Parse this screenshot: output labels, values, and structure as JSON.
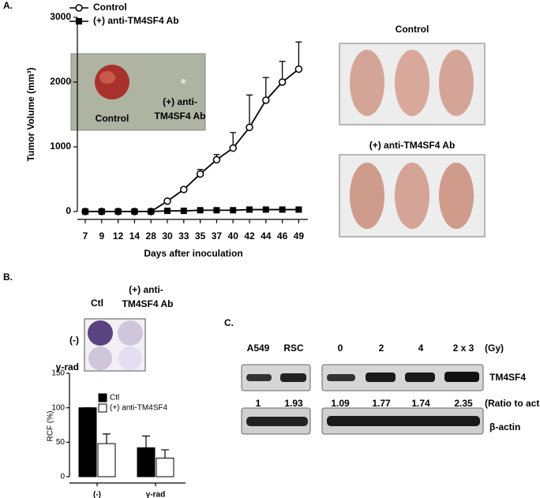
{
  "panels": {
    "a": "A.",
    "b": "B.",
    "c": "C."
  },
  "chart_data": [
    {
      "type": "line",
      "x_label": "Days after inoculation",
      "y_label": "Tumor Volume (mm³)",
      "categories": [
        7,
        9,
        12,
        14,
        28,
        30,
        33,
        35,
        37,
        40,
        42,
        44,
        46,
        49
      ],
      "series": [
        {
          "name": "Control",
          "color": "#000000",
          "marker": "open-circle",
          "values": [
            0,
            0,
            0,
            0,
            0,
            160,
            340,
            580,
            800,
            980,
            1300,
            1720,
            2000,
            2200
          ],
          "errors": [
            0,
            0,
            0,
            0,
            0,
            0,
            30,
            70,
            80,
            240,
            500,
            350,
            320,
            420
          ]
        },
        {
          "name": "(+) anti-TM4SF4 Ab",
          "color": "#000000",
          "marker": "filled-square",
          "values": [
            0,
            0,
            0,
            0,
            0,
            10,
            10,
            20,
            20,
            20,
            30,
            30,
            30,
            30
          ]
        }
      ],
      "ylim": [
        0,
        3000
      ],
      "yticks": [
        0,
        1000,
        2000,
        3000
      ]
    },
    {
      "type": "bar",
      "y_label": "RCF (%)",
      "categories": [
        "(-)",
        "γ-rad"
      ],
      "series": [
        {
          "name": "Ctl",
          "color": "#000000",
          "values": [
            100,
            42
          ],
          "errors": [
            0,
            17
          ]
        },
        {
          "name": "(+) anti-TM4SF4",
          "color": "#ffffff",
          "values": [
            48,
            27
          ],
          "errors": [
            14,
            12
          ]
        }
      ],
      "ylim": [
        0,
        150
      ],
      "yticks": [
        0,
        50,
        100,
        150
      ]
    }
  ],
  "tumor_photo": {
    "control": "Control",
    "treated_line1": "(+) anti-",
    "treated_line2": "TM4SF4 Ab"
  },
  "mice_photos": {
    "top": "Control",
    "bottom": "(+) anti-TM4SF4 Ab"
  },
  "colony_photo": {
    "col1": "Ctl",
    "col2_line1": "(+) anti-",
    "col2_line2": "TM4SF4 Ab",
    "row1": "(-)",
    "row2": "γ-rad"
  },
  "blot": {
    "lanes": [
      "A549",
      "RSC",
      "0",
      "2",
      "4",
      "2 x 3"
    ],
    "unit": "(Gy)",
    "band1": "TM4SF4",
    "ratios": [
      1,
      1.93,
      1.09,
      1.77,
      1.74,
      2.35
    ],
    "ratio_label": "(Ratio to actin)",
    "band2": "β-actin"
  }
}
